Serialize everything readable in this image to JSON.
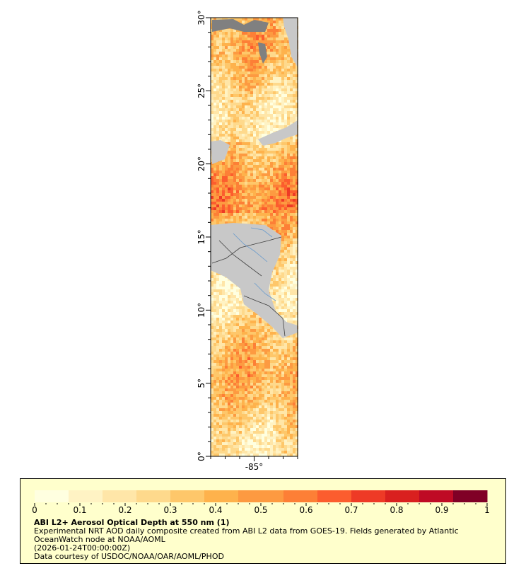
{
  "map": {
    "lat_range": [
      0,
      30
    ],
    "lon_range": [
      -88,
      -82
    ],
    "lat_ticks": [
      "0°",
      "5°",
      "10°",
      "15°",
      "20°",
      "25°",
      "30°"
    ],
    "lon_ticks": [
      "-85°"
    ],
    "land_color": "#c8c8c8",
    "nodata_color": "#808080",
    "river_color": "#6699cc",
    "border_color": "#404040"
  },
  "legend": {
    "colorbar_ticks": [
      "0",
      "0.1",
      "0.2",
      "0.3",
      "0.4",
      "0.5",
      "0.6",
      "0.7",
      "0.8",
      "0.9",
      "1"
    ],
    "colors": [
      "#ffffe0",
      "#fff3c4",
      "#ffe6a8",
      "#fed98c",
      "#fec76a",
      "#feb24c",
      "#fd9a41",
      "#fd7f36",
      "#fc5d2e",
      "#ee3a26",
      "#d9201f",
      "#bf0a25",
      "#800026"
    ],
    "title": "ABI L2+ Aerosol Optical Depth at 550 nm (1)",
    "line1": "Experimental NRT AOD daily composite created from ABI L2 data from GOES-19. Fields generated by Atlantic",
    "line2": "OceanWatch node at NOAA/AOML",
    "line3": "(2026-01-24T00:00:00Z)",
    "line4": "Data courtesy of USDOC/NOAA/OAR/AOML/PHOD"
  }
}
